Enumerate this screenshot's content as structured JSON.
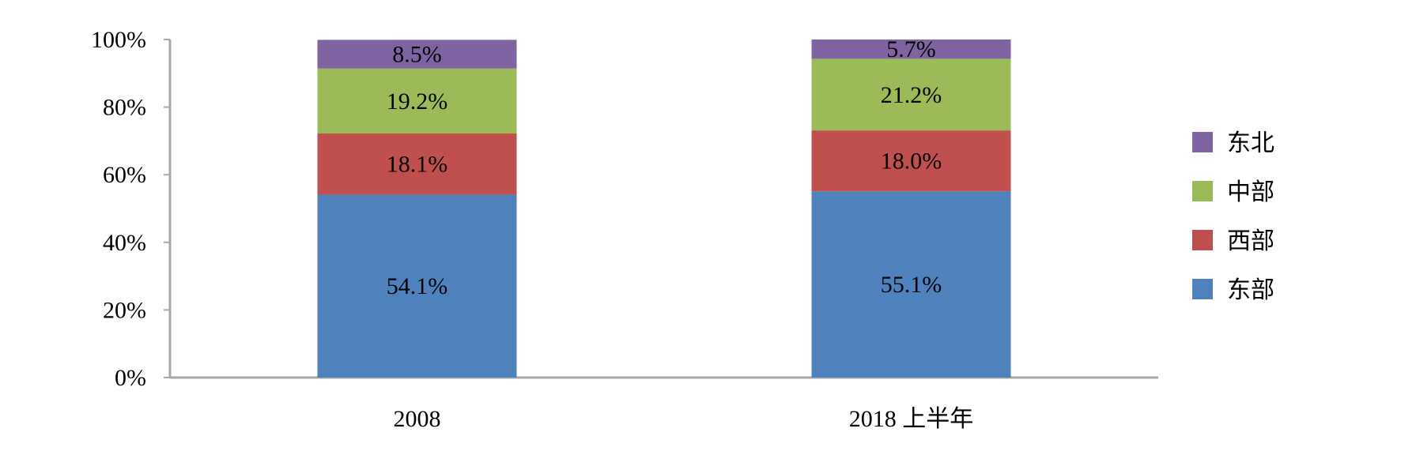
{
  "chart_data": {
    "type": "bar",
    "stacked": true,
    "percent": true,
    "categories": [
      "2008",
      "2018 上半年"
    ],
    "series": [
      {
        "name": "东部",
        "values": [
          54.1,
          55.1
        ],
        "labels": [
          "54.1%",
          "55.1%"
        ],
        "color": "#4f81bd"
      },
      {
        "name": "西部",
        "values": [
          18.1,
          18.0
        ],
        "labels": [
          "18.1%",
          "18.0%"
        ],
        "color": "#c0504d"
      },
      {
        "name": "中部",
        "values": [
          19.2,
          21.2
        ],
        "labels": [
          "19.2%",
          "21.2%"
        ],
        "color": "#9bbb59"
      },
      {
        "name": "东北",
        "values": [
          8.5,
          5.7
        ],
        "labels": [
          "8.5%",
          "5.7%"
        ],
        "color": "#8064a2"
      }
    ],
    "y_ticks": [
      "0%",
      "20%",
      "40%",
      "60%",
      "80%",
      "100%"
    ],
    "ylim": [
      0,
      100
    ],
    "legend": {
      "position": "right",
      "order": [
        "东北",
        "中部",
        "西部",
        "东部"
      ]
    },
    "grid": false,
    "axis_color": "#a6a6a6"
  }
}
